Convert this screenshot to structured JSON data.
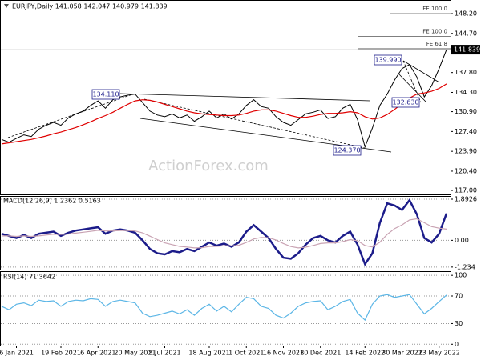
{
  "chart_data": [
    {
      "type": "line",
      "title": "EURJPY,Daily  141.058 142.047 140.979 141.839",
      "watermark": "ActionForex.com",
      "ylim": [
        116.3,
        150.6
      ],
      "yticks": [
        {
          "value": 117,
          "label": "117.00"
        },
        {
          "value": 120.4,
          "label": "120.40"
        },
        {
          "value": 123.9,
          "label": "123.90"
        },
        {
          "value": 127.4,
          "label": "127.40"
        },
        {
          "value": 130.9,
          "label": "130.90"
        },
        {
          "value": 134.3,
          "label": "134.30"
        },
        {
          "value": 137.8,
          "label": "137.80"
        },
        {
          "value": 144.7,
          "label": "144.70"
        },
        {
          "value": 148.2,
          "label": "148.20"
        }
      ],
      "grid": false,
      "price_marker": 141.839,
      "levels": [
        {
          "label": "FE 100.0",
          "value": 148.2
        },
        {
          "label": "FE 100.0",
          "value": 144.2
        },
        {
          "label": "FE 61.8",
          "value": 142.0
        }
      ],
      "annotations": [
        {
          "label": "134.110",
          "value": 134.11
        },
        {
          "label": "124.370",
          "value": 124.37
        },
        {
          "label": "139.990",
          "value": 139.99
        },
        {
          "label": "132.630",
          "value": 132.63
        }
      ],
      "series": [
        {
          "color": "#000000",
          "values": [
            126.0,
            125.5,
            126.2,
            126.8,
            126.5,
            127.8,
            128.5,
            129.0,
            128.5,
            129.8,
            130.5,
            131.0,
            132.0,
            132.8,
            131.5,
            133.0,
            133.5,
            133.8,
            134.0,
            132.5,
            131.0,
            130.3,
            130.0,
            130.5,
            129.8,
            130.3,
            129.2,
            130.0,
            131.0,
            129.8,
            130.5,
            129.6,
            130.5,
            132.0,
            133.0,
            131.8,
            131.5,
            130.0,
            129.0,
            128.5,
            129.5,
            130.5,
            130.8,
            131.2,
            129.7,
            130.0,
            131.5,
            132.2,
            129.5,
            124.7,
            128.0,
            132.0,
            134.0,
            136.5,
            138.5,
            139.2,
            137.0,
            133.5,
            135.5,
            138.5,
            141.839
          ]
        },
        {
          "color": "#e00000",
          "values": [
            125.2,
            125.4,
            125.6,
            125.8,
            126.0,
            126.3,
            126.6,
            127.0,
            127.3,
            127.7,
            128.1,
            128.6,
            129.1,
            129.7,
            130.2,
            130.8,
            131.5,
            132.2,
            132.8,
            133.0,
            132.9,
            132.6,
            132.2,
            131.8,
            131.4,
            131.0,
            130.7,
            130.5,
            130.4,
            130.3,
            130.2,
            130.2,
            130.3,
            130.6,
            131.0,
            131.2,
            131.2,
            131.0,
            130.6,
            130.2,
            129.9,
            129.9,
            130.1,
            130.4,
            130.6,
            130.6,
            130.7,
            130.9,
            130.7,
            130.0,
            129.6,
            129.8,
            130.4,
            131.3,
            132.3,
            133.3,
            134.0,
            134.2,
            134.5,
            135.0,
            135.8
          ]
        }
      ]
    },
    {
      "type": "line",
      "title": "MACD(12,26,9) 1.2362 0.5163",
      "ylim": [
        -1.35,
        2.04
      ],
      "yticks": [
        -1.234,
        {
          "value": 0,
          "label": "0.00"
        },
        1.8926
      ],
      "grid": true,
      "series": [
        {
          "color": "#1c1c8a",
          "values": [
            0.3,
            0.2,
            0.1,
            0.25,
            0.1,
            0.3,
            0.35,
            0.4,
            0.2,
            0.35,
            0.45,
            0.5,
            0.55,
            0.6,
            0.3,
            0.45,
            0.5,
            0.45,
            0.35,
            0.0,
            -0.4,
            -0.6,
            -0.65,
            -0.5,
            -0.55,
            -0.4,
            -0.5,
            -0.3,
            -0.1,
            -0.25,
            -0.15,
            -0.3,
            -0.1,
            0.4,
            0.7,
            0.4,
            0.1,
            -0.4,
            -0.8,
            -0.85,
            -0.6,
            -0.2,
            0.1,
            0.2,
            0.0,
            -0.1,
            0.2,
            0.4,
            -0.2,
            -1.1,
            -0.6,
            0.8,
            1.7,
            1.6,
            1.4,
            1.85,
            1.2,
            0.1,
            -0.1,
            0.3,
            1.2362
          ]
        },
        {
          "color": "#c9a3b3",
          "values": [
            0.2,
            0.2,
            0.18,
            0.2,
            0.18,
            0.2,
            0.24,
            0.28,
            0.27,
            0.29,
            0.33,
            0.37,
            0.41,
            0.46,
            0.43,
            0.43,
            0.45,
            0.45,
            0.43,
            0.34,
            0.19,
            0.03,
            -0.12,
            -0.2,
            -0.28,
            -0.31,
            -0.35,
            -0.34,
            -0.29,
            -0.28,
            -0.25,
            -0.26,
            -0.23,
            -0.1,
            0.06,
            0.13,
            0.12,
            0.01,
            -0.15,
            -0.29,
            -0.35,
            -0.32,
            -0.24,
            -0.15,
            -0.12,
            -0.12,
            -0.06,
            0.03,
            -0.02,
            -0.24,
            -0.31,
            -0.09,
            0.27,
            0.54,
            0.71,
            0.94,
            0.99,
            0.81,
            0.63,
            0.56,
            0.5163
          ]
        }
      ]
    },
    {
      "type": "line",
      "title": "RSI(14) 71.3642",
      "ylim": [
        -2,
        106
      ],
      "yticks": [
        0,
        30,
        70,
        100
      ],
      "grid": true,
      "categories": [
        null,
        null,
        "6 Jan 2021",
        null,
        null,
        null,
        null,
        null,
        "19 Feb 2021",
        null,
        null,
        null,
        null,
        "6 Apr 2021",
        null,
        null,
        null,
        null,
        "20 May 2021",
        null,
        null,
        null,
        "5 Jul 2021",
        null,
        null,
        null,
        null,
        null,
        "18 Aug 2021",
        null,
        null,
        null,
        null,
        "1 Oct 2021",
        null,
        null,
        null,
        null,
        "16 Nov 2021",
        null,
        null,
        null,
        null,
        "30 Dec 2021",
        null,
        null,
        null,
        null,
        null,
        "14 Feb 2022",
        null,
        null,
        null,
        null,
        "30 Mar 2022",
        null,
        null,
        null,
        null,
        "13 May 2022",
        null
      ],
      "series": [
        {
          "color": "#5cb6e6",
          "values": [
            55,
            50,
            58,
            60,
            56,
            64,
            62,
            63,
            55,
            62,
            64,
            63,
            66,
            65,
            55,
            62,
            64,
            62,
            60,
            45,
            40,
            42,
            45,
            48,
            44,
            50,
            42,
            52,
            58,
            48,
            55,
            47,
            58,
            68,
            66,
            55,
            52,
            42,
            38,
            45,
            55,
            60,
            62,
            63,
            50,
            55,
            62,
            65,
            45,
            35,
            58,
            70,
            72,
            68,
            70,
            72,
            58,
            44,
            52,
            62,
            71.3642
          ]
        }
      ]
    }
  ]
}
